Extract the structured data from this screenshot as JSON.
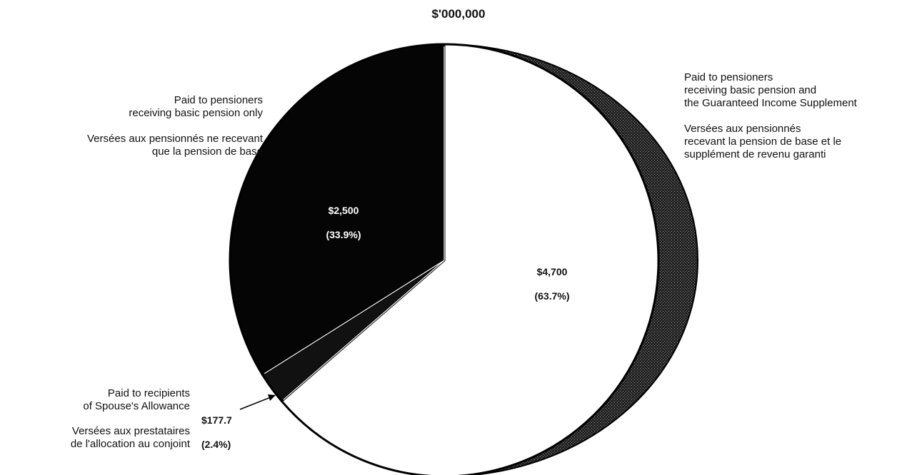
{
  "chart_data": {
    "type": "pie",
    "title": "$'000,000",
    "slices": [
      {
        "key": "gis",
        "value": 4700,
        "percent": 63.7,
        "value_label": "$4,700",
        "percent_label": "(63.7%)",
        "label_en": "Paid to pensioners\nreceiving basic pension and\nthe Guaranteed Income Supplement",
        "label_fr": "Versées aux pensionnés\nrecevant la pension de base et le\nsupplément de revenu garanti",
        "color": "#ffffff"
      },
      {
        "key": "spouse",
        "value": 177.7,
        "percent": 2.4,
        "value_label": "$177.7",
        "percent_label": "(2.4%)",
        "label_en": "Paid to recipients\nof Spouse's Allowance",
        "label_fr": "Versées aux prestataires\nde l'allocation au conjoint",
        "color": "#111111"
      },
      {
        "key": "basic",
        "value": 2500,
        "percent": 33.9,
        "value_label": "$2,500",
        "percent_label": "(33.9%)",
        "label_en": "Paid to pensioners\nreceiving basic pension only",
        "label_fr": "Versées aux pensionnés ne recevant\nque la pension de base",
        "color": "#050505"
      }
    ]
  }
}
